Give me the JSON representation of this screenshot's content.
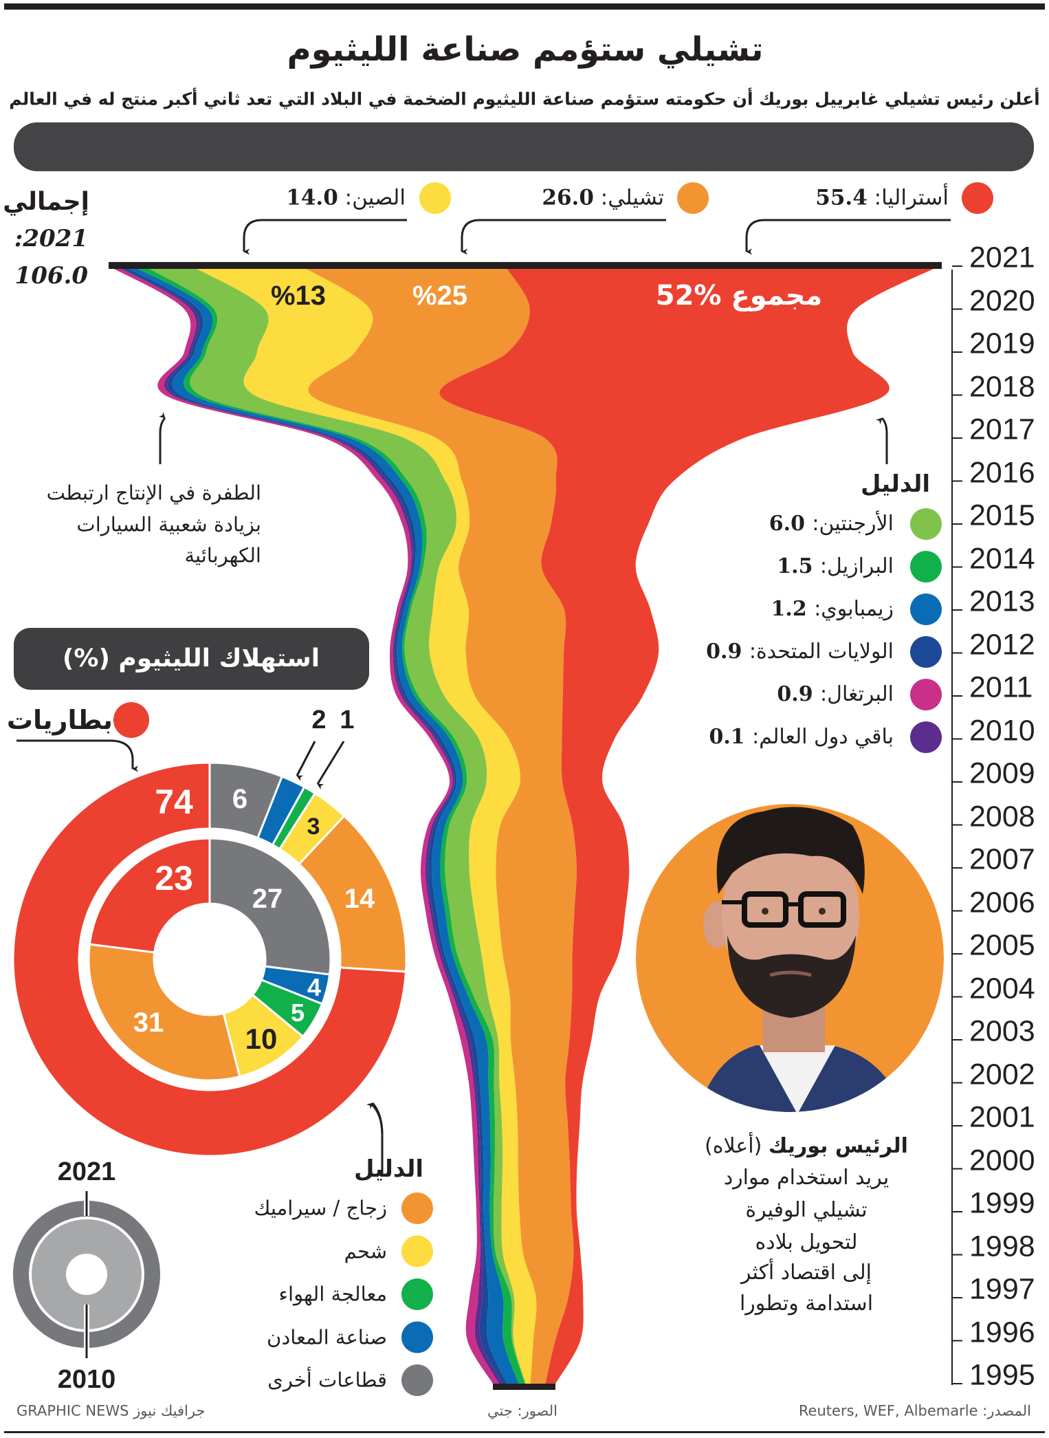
{
  "header": {
    "title": "تشيلي ستؤمم صناعة الليثيوم",
    "subtitle": "أعلن رئيس تشيلي غابرييل بوريك أن حكومته ستؤمم صناعة الليثيوم الضخمة في البلاد التي تعد ثاني أكبر منتج له في العالم"
  },
  "total": {
    "label": "إجمالي",
    "year": "2021:",
    "value": "106.0"
  },
  "stream_annotation": {
    "lines": [
      "الطفرة في الإنتاج ارتبطت",
      "بزيادة شعبية السيارات",
      "الكهربائية"
    ]
  },
  "stream_legend_title": "الدليل",
  "portrait": {
    "caption_name": "الرئيس بوريك",
    "caption_note": "(أعلاه)",
    "caption_lines": [
      "يريد استخدام موارد",
      "تشيلي الوفيرة",
      "لتحويل بلاده",
      "إلى اقتصاد أكثر",
      "استدامة وتطورا"
    ]
  },
  "consumption": {
    "title": "استهلاك الليثيوم (%)",
    "legend_title": "الدليل"
  },
  "footer": {
    "credit": "جرافيك نيوز GRAPHIC NEWS",
    "photos": "الصور: جتي",
    "source": "المصدر: Reuters, WEF, Albemarle"
  },
  "colors": {
    "australia": "#ec4130",
    "chile": "#f39433",
    "china": "#fcdc3e",
    "argentina": "#80c34a",
    "brazil": "#12b04b",
    "zimbabwe": "#0a6cb5",
    "us": "#1d4897",
    "portugal": "#c8308a",
    "rest": "#5a2d8e",
    "other_sectors": "#77787b",
    "panel": "#3f3f41"
  },
  "chart_data": [
    {
      "type": "area",
      "x": [
        2021,
        2020,
        2019,
        2018,
        2017,
        2016,
        2015,
        2014,
        2013,
        2012,
        2011,
        2010,
        2009,
        2008,
        2007,
        2006,
        2005,
        2004,
        2003,
        2002,
        2001,
        2000,
        1999,
        1998,
        1997,
        1996,
        1995
      ],
      "series": [
        {
          "name": "أستراليا",
          "color": "#ec4130",
          "values": [
            55.4,
            41.6,
            44,
            56.8,
            25.4,
            15.0,
            12.4,
            12.0,
            11.0,
            12.1,
            10.2,
            6.7,
            5.1,
            6.5,
            6.7,
            6.5,
            5.9,
            3.5,
            2.8,
            2.2,
            1.5,
            0.9,
            0.7,
            0.9,
            1.9,
            3.2,
            1.3
          ]
        },
        {
          "name": "تشيلي",
          "color": "#f39433",
          "values": [
            26.0,
            20.4,
            19.5,
            16.5,
            13.8,
            12.0,
            10.4,
            10.6,
            12.2,
            12.5,
            11.2,
            6.8,
            5.4,
            9.2,
            10.3,
            9.7,
            8.9,
            7.9,
            7.5,
            6.4,
            6.4,
            6.6,
            6.6,
            6.4,
            4.1,
            2.8,
            1.9
          ]
        },
        {
          "name": "الصين",
          "color": "#fcdc3e",
          "values": [
            14.0,
            13.4,
            12.5,
            7.2,
            4.1,
            2.1,
            1.7,
            2.5,
            4.6,
            4.6,
            3.9,
            3.8,
            4.3,
            3.7,
            3.4,
            3.1,
            2.7,
            2.8,
            1.6,
            2.0,
            2.0,
            2.0,
            2.3,
            2.6,
            2.8,
            2.5,
            0.6
          ]
        },
        {
          "name": "الأرجنتين",
          "color": "#80c34a",
          "values": [
            6.0,
            6.5,
            6.5,
            6.9,
            6.1,
            4.8,
            3.9,
            2.0,
            2.8,
            3.2,
            3.3,
            3.1,
            2.5,
            2.8,
            3.1,
            3.1,
            3.1,
            1.8,
            0.7,
            0.7,
            0.9,
            1.0,
            1.0,
            0.9,
            0.4,
            0.2,
            0.1
          ]
        },
        {
          "name": "البرازيل",
          "color": "#12b04b",
          "values": [
            1.5,
            0.7,
            0.5,
            0.9,
            0.8,
            0.7,
            0.6,
            0.4,
            0.3,
            0.3,
            0.5,
            0.6,
            0.5,
            0.5,
            0.6,
            0.6,
            0.6,
            0.7,
            0.8,
            0.7,
            0.6,
            0.5,
            0.5,
            0.4,
            1.0,
            1.1,
            0.8
          ]
        },
        {
          "name": "زيمبابوي",
          "color": "#0a6cb5",
          "values": [
            1.2,
            1.3,
            1.0,
            1.6,
            1.5,
            1.3,
            1.0,
            0.7,
            0.6,
            0.7,
            1.0,
            1.1,
            0.8,
            1.0,
            1.1,
            1.1,
            1.0,
            1.1,
            1.5,
            1.1,
            1.0,
            0.9,
            0.8,
            0.9,
            1.9,
            2.0,
            1.5
          ]
        },
        {
          "name": "الولايات المتحدة",
          "color": "#1d4897",
          "values": [
            0.9,
            0.6,
            0.4,
            0.7,
            0.6,
            0.6,
            0.5,
            0.3,
            0.3,
            0.3,
            0.4,
            0.5,
            0.3,
            0.4,
            0.5,
            0.5,
            0.4,
            0.5,
            0.6,
            0.5,
            0.4,
            0.4,
            0.3,
            0.4,
            0.8,
            0.9,
            0.6
          ]
        },
        {
          "name": "البرتغال",
          "color": "#c8308a",
          "values": [
            0.9,
            0.8,
            0.6,
            0.9,
            0.8,
            0.8,
            0.6,
            0.4,
            0.4,
            0.4,
            0.6,
            0.6,
            0.4,
            0.5,
            0.6,
            0.6,
            0.6,
            0.6,
            0.8,
            0.6,
            0.6,
            0.5,
            0.4,
            0.5,
            1.1,
            1.1,
            0.8
          ]
        },
        {
          "name": "باقي دول العالم",
          "color": "#5a2d8e",
          "values": [
            0.1,
            0.4,
            0.3,
            0.4,
            0.4,
            0.4,
            0.3,
            0.2,
            0.2,
            0.2,
            0.3,
            0.3,
            0.2,
            0.3,
            0.3,
            0.3,
            0.3,
            0.3,
            0.4,
            0.3,
            0.3,
            0.3,
            0.2,
            0.3,
            0.5,
            0.6,
            0.4
          ]
        }
      ],
      "annotations": [
        "%13",
        "%25",
        "مجموع %52"
      ]
    },
    {
      "type": "pie",
      "title": "استهلاك الليثيوم (%)",
      "categories": [
        "قطاعات أخرى",
        "صناعة المعادن",
        "معالجة الهواء",
        "شحم",
        "زجاج / سيراميك",
        "بطاريات"
      ],
      "colors": [
        "#77787b",
        "#0a6cb5",
        "#12b04b",
        "#fcdc3e",
        "#f39433",
        "#ec4130"
      ],
      "series": [
        {
          "name": "2021",
          "values": [
            6,
            2,
            1,
            3,
            14,
            74
          ]
        },
        {
          "name": "2010",
          "values": [
            27,
            4,
            5,
            10,
            31,
            23
          ]
        }
      ]
    }
  ]
}
